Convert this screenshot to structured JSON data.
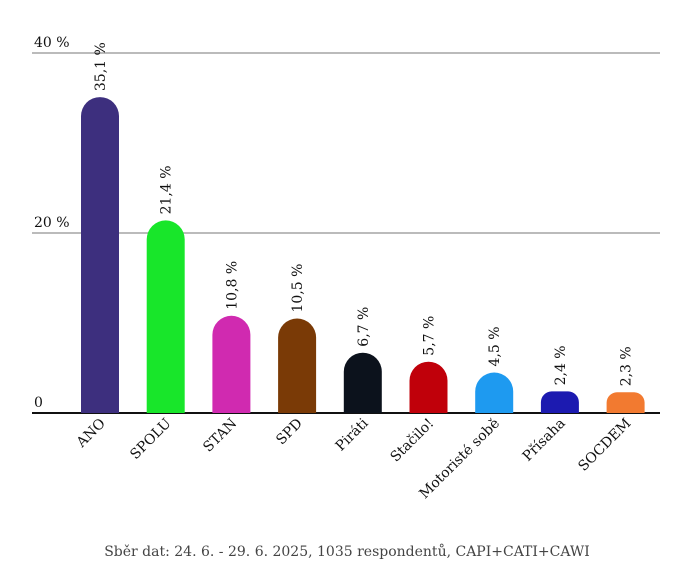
{
  "chart_data": {
    "type": "bar",
    "categories": [
      "ANO",
      "SPOLU",
      "STAN",
      "SPD",
      "Piráti",
      "Stačilo!",
      "Motoristé sobě",
      "Přísaha",
      "SOCDEM"
    ],
    "values": [
      35.1,
      21.4,
      10.8,
      10.5,
      6.7,
      5.7,
      4.5,
      2.4,
      2.3
    ],
    "value_labels": [
      "35,1 %",
      "21,4 %",
      "10,8 %",
      "10,5 %",
      "6,7 %",
      "5,7 %",
      "4,5 %",
      "2,4 %",
      "2,3 %"
    ],
    "colors": [
      "#3d2f7e",
      "#18e62a",
      "#d02ab0",
      "#7a3a06",
      "#0c121c",
      "#c0000a",
      "#1e9af0",
      "#1c1ab0",
      "#f27a30"
    ],
    "y_ticks": [
      0,
      20,
      40
    ],
    "y_tick_labels": [
      "0",
      "20 %",
      "40 %"
    ],
    "ylim": [
      0,
      40
    ],
    "grid": true,
    "legend": "none"
  },
  "footnote": "Sběr dat: 24. 6. - 29. 6. 2025, 1035 respondentů, CAPI+CATI+CAWI"
}
